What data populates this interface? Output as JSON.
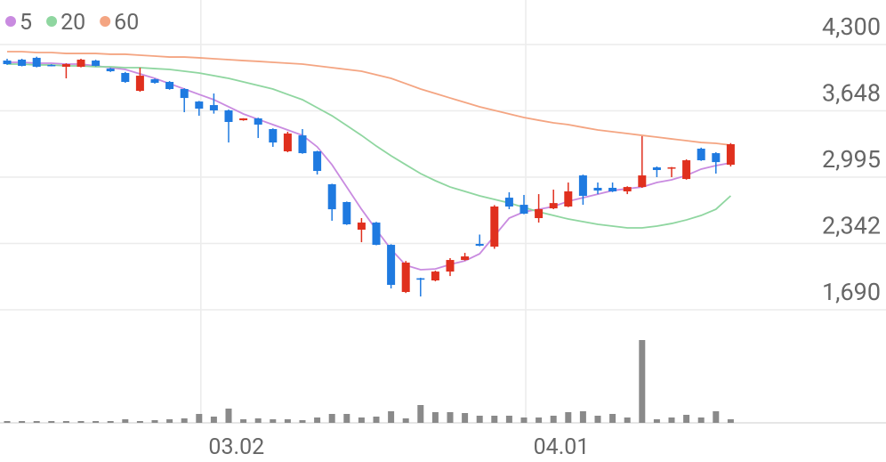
{
  "chart_data": {
    "type": "candlestick",
    "categories": [
      null,
      null,
      null,
      null,
      null,
      null,
      null,
      null,
      null,
      null,
      null,
      null,
      null,
      "03.02",
      null,
      null,
      null,
      null,
      null,
      null,
      null,
      null,
      null,
      null,
      null,
      null,
      null,
      null,
      null,
      null,
      null,
      null,
      null,
      null,
      null,
      "04.01",
      null,
      null,
      null,
      null,
      null,
      null,
      null,
      null,
      null,
      null,
      null,
      null,
      null,
      null
    ],
    "open": [
      4142,
      4151,
      4169,
      4099,
      4081,
      4081,
      4142,
      4063,
      4020,
      3844,
      3958,
      3932,
      3862,
      3739,
      3704,
      3652,
      3555,
      3573,
      3468,
      3249,
      3406,
      3249,
      2925,
      2750,
      2478,
      2548,
      2329,
      1865,
      2000,
      1979,
      2066,
      2180,
      2338,
      2311,
      2793,
      2723,
      2592,
      2688,
      2706,
      3012,
      2890,
      2890,
      2855,
      2898,
      3091,
      3082,
      2977,
      3275,
      3231,
      3117
    ],
    "high": [
      4160,
      4160,
      4180,
      4105,
      4115,
      4160,
      4150,
      4070,
      4030,
      4072,
      3965,
      3940,
      3870,
      3745,
      3818,
      3660,
      3575,
      3580,
      3475,
      3442,
      3468,
      3255,
      2930,
      2755,
      2592,
      2555,
      2335,
      2170,
      2005,
      2075,
      2198,
      2250,
      2430,
      2720,
      2846,
      2820,
      2828,
      2872,
      2942,
      3020,
      2942,
      2942,
      2905,
      3398,
      3100,
      3095,
      3170,
      3285,
      3240,
      3330
    ],
    "low": [
      4100,
      4085,
      4075,
      4085,
      3967,
      4075,
      4085,
      4030,
      3923,
      3835,
      3915,
      3855,
      3634,
      3599,
      3620,
      3336,
      3550,
      3380,
      3293,
      3240,
      3225,
      3021,
      2566,
      2525,
      2355,
      2325,
      1900,
      1855,
      1821,
      1970,
      2022,
      2175,
      2315,
      2290,
      2680,
      2630,
      2548,
      2680,
      2700,
      2723,
      2828,
      2848,
      2828,
      2890,
      2995,
      2995,
      2970,
      3155,
      3030,
      3100
    ],
    "close": [
      4107,
      4090,
      4081,
      4090,
      4107,
      4151,
      4090,
      4037,
      3932,
      3993,
      3923,
      3862,
      3774,
      3669,
      3652,
      3538,
      3573,
      3512,
      3336,
      3424,
      3231,
      3056,
      2679,
      2531,
      2548,
      2329,
      1935,
      2154,
      1986,
      2066,
      2180,
      2215,
      2320,
      2706,
      2706,
      2636,
      2680,
      2740,
      2855,
      2811,
      2863,
      2855,
      2898,
      3012,
      3065,
      3091,
      3161,
      3161,
      3143,
      3319
    ],
    "up_color": "#e0301e",
    "down_color": "#1f7ae0",
    "series": [
      {
        "name": "5",
        "color": "#c98be0",
        "values": [
          4125,
          4125,
          4116,
          4116,
          4107,
          4107,
          4090,
          4072,
          4055,
          4011,
          3967,
          3915,
          3862,
          3809,
          3757,
          3687,
          3617,
          3564,
          3512,
          3459,
          3406,
          3293,
          3117,
          2898,
          2679,
          2478,
          2285,
          2128,
          2084,
          2092,
          2136,
          2171,
          2241,
          2417,
          2592,
          2653,
          2679,
          2706,
          2758,
          2793,
          2828,
          2863,
          2881,
          2898,
          2942,
          2969,
          3012,
          3074,
          3109,
          3135
        ]
      },
      {
        "name": "20",
        "color": "#8fd6a0",
        "values": [
          4107,
          4107,
          4099,
          4099,
          4090,
          4090,
          4081,
          4081,
          4072,
          4072,
          4063,
          4055,
          4037,
          4020,
          3993,
          3967,
          3932,
          3897,
          3862,
          3809,
          3757,
          3678,
          3599,
          3503,
          3406,
          3301,
          3205,
          3117,
          3030,
          2960,
          2898,
          2855,
          2811,
          2776,
          2741,
          2697,
          2653,
          2618,
          2583,
          2557,
          2531,
          2513,
          2496,
          2496,
          2513,
          2539,
          2574,
          2618,
          2679,
          2811
        ]
      },
      {
        "name": "60",
        "color": "#f4a582",
        "values": [
          4230,
          4230,
          4221,
          4221,
          4212,
          4212,
          4212,
          4204,
          4204,
          4195,
          4186,
          4177,
          4177,
          4169,
          4160,
          4151,
          4142,
          4134,
          4125,
          4116,
          4107,
          4090,
          4072,
          4055,
          4037,
          4002,
          3967,
          3915,
          3862,
          3818,
          3774,
          3731,
          3687,
          3652,
          3617,
          3582,
          3555,
          3529,
          3512,
          3485,
          3459,
          3442,
          3424,
          3406,
          3389,
          3371,
          3354,
          3336,
          3328,
          3310
        ]
      }
    ],
    "volume": {
      "color": "#8a8a8a",
      "ylim": [
        0,
        100
      ],
      "values": [
        2,
        2,
        2,
        2,
        2,
        2,
        2,
        2,
        4,
        2,
        3,
        4,
        5,
        10,
        7,
        16,
        4,
        5,
        4,
        4,
        3,
        6,
        10,
        10,
        6,
        7,
        13,
        5,
        20,
        12,
        12,
        11,
        8,
        8,
        8,
        6,
        6,
        8,
        12,
        13,
        8,
        10,
        6,
        93,
        4,
        6,
        9,
        6,
        13,
        4
      ]
    },
    "ylim": [
      1690,
      4300
    ],
    "yticks": [
      {
        "value": 1690,
        "label": "1,690"
      },
      {
        "value": 2342,
        "label": "2,342"
      },
      {
        "value": 2995,
        "label": "2,995"
      },
      {
        "value": 3648,
        "label": "3,648"
      },
      {
        "value": 4300,
        "label": "4,300"
      }
    ],
    "grid": true,
    "legend": "top-left"
  }
}
